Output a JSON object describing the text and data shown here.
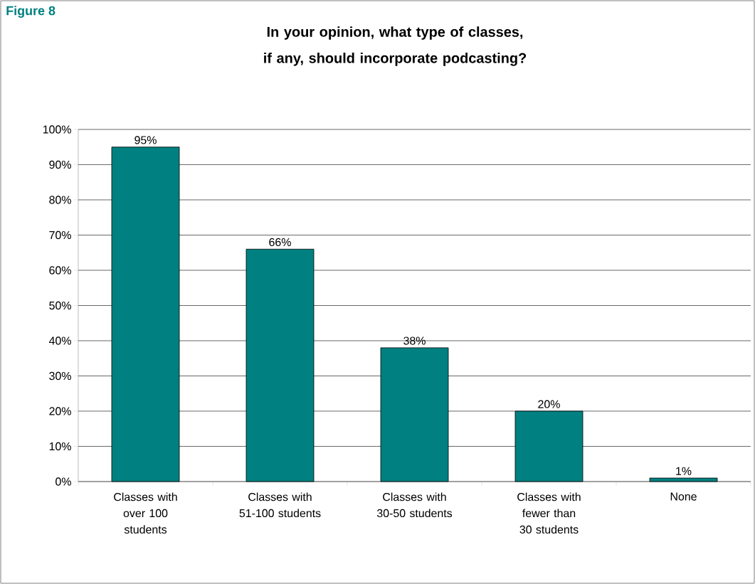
{
  "chart_data": {
    "type": "bar",
    "title": "In your opinion, what type of classes, if any, should incorporate podcasting?",
    "annotations": [
      "Figure 8"
    ],
    "categories": [
      "Classes with over 100 students",
      "Classes with 51-100 students",
      "Classes with 30-50 students",
      "Classes with fewer than 30 students",
      "None"
    ],
    "values": [
      95,
      66,
      38,
      20,
      1
    ],
    "value_labels": [
      "95%",
      "66%",
      "38%",
      "20%",
      "1%"
    ],
    "color": "#008080",
    "ylim": [
      0,
      100
    ],
    "yticks": [
      {
        "value": 0,
        "label": "0%"
      },
      {
        "value": 10,
        "label": "10%"
      },
      {
        "value": 20,
        "label": "20%"
      },
      {
        "value": 30,
        "label": "30%"
      },
      {
        "value": 40,
        "label": "40%"
      },
      {
        "value": 50,
        "label": "50%"
      },
      {
        "value": 60,
        "label": "60%"
      },
      {
        "value": 70,
        "label": "70%"
      },
      {
        "value": 80,
        "label": "80%"
      },
      {
        "value": 90,
        "label": "90%"
      },
      {
        "value": 100,
        "label": "100%"
      }
    ],
    "grid": "y"
  }
}
